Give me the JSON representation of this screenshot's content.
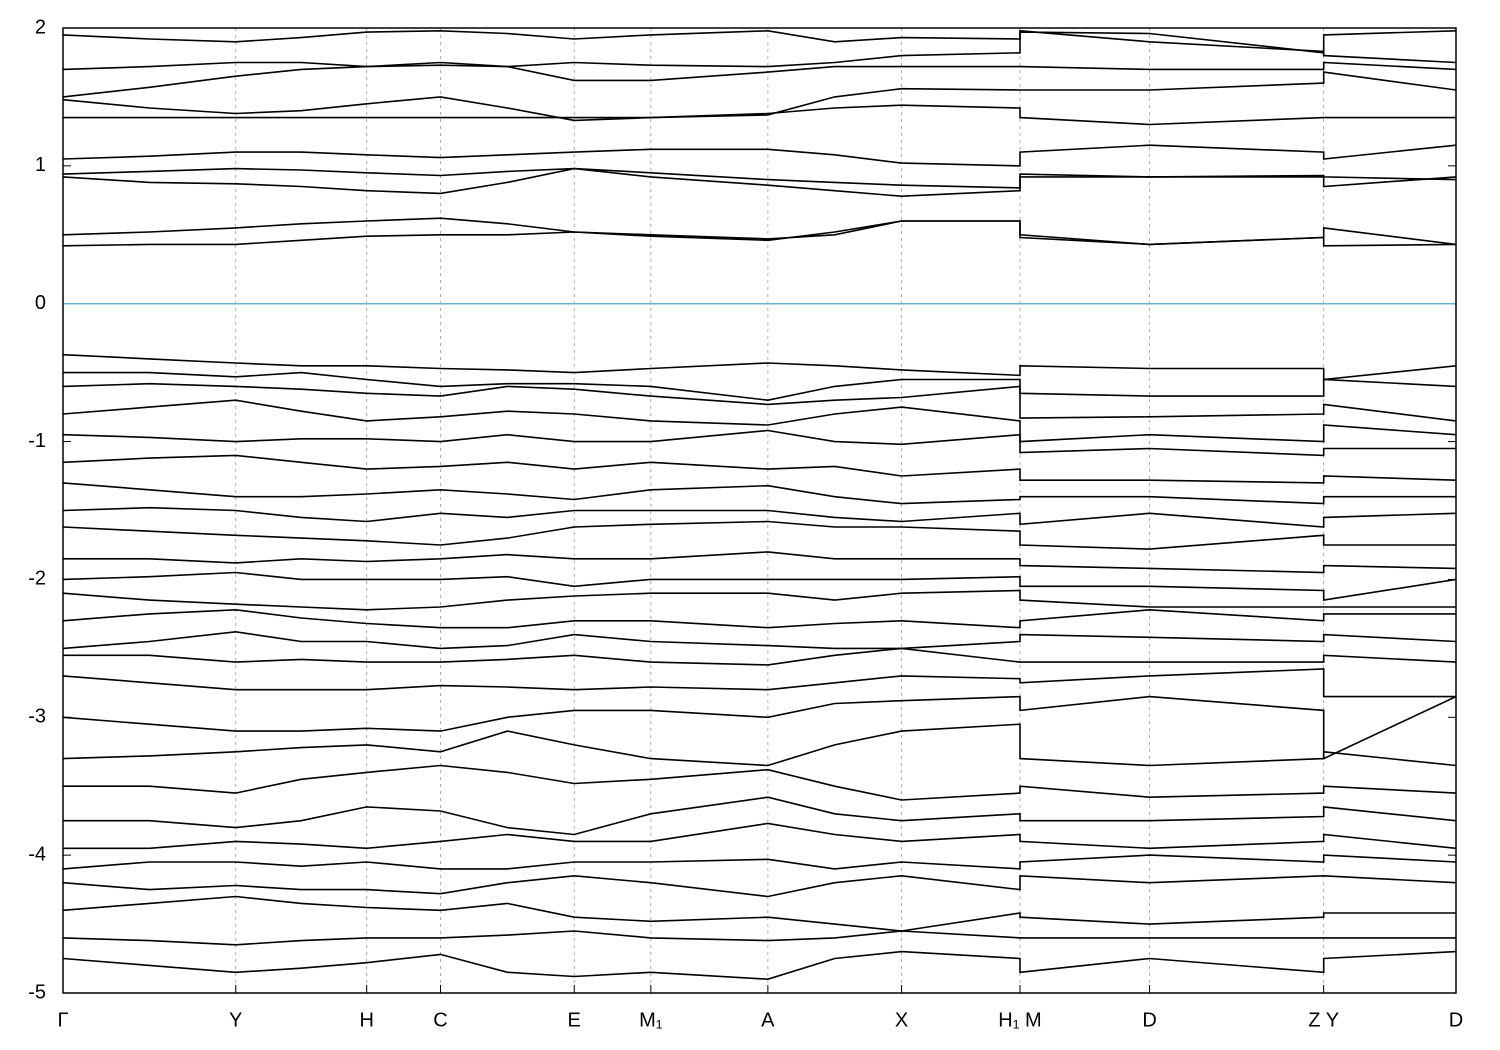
{
  "chart_data": {
    "type": "band",
    "xlim": [
      0,
      1
    ],
    "ylim": [
      -5,
      2
    ],
    "yticks": [
      -5,
      -4,
      -3,
      -2,
      -1,
      0,
      1,
      2
    ],
    "xticks": [
      {
        "value": 0,
        "label": "Γ"
      },
      {
        "value": 0.124,
        "label": "Y"
      },
      {
        "value": 0.218,
        "label": "H"
      },
      {
        "value": 0.271,
        "label": "C"
      },
      {
        "value": 0.367,
        "label": "E"
      },
      {
        "value": 0.422,
        "label": "M₁"
      },
      {
        "value": 0.506,
        "label": "A"
      },
      {
        "value": 0.602,
        "label": "X"
      },
      {
        "value": 0.687,
        "label": "H₁ M"
      },
      {
        "value": 0.78,
        "label": "D"
      },
      {
        "value": 0.905,
        "label": "Z Y"
      },
      {
        "value": 1,
        "label": "D"
      }
    ],
    "grid": true,
    "fermi_level": 0,
    "fermi_color": "#5fb4c8",
    "x": [
      0,
      0.062,
      0.124,
      0.171,
      0.218,
      0.271,
      0.319,
      0.367,
      0.422,
      0.506,
      0.554,
      0.602,
      0.687,
      0.687,
      0.78,
      0.905,
      0.905,
      1
    ],
    "series": [
      {
        "color": "#000000",
        "values": [
          0.42,
          0.43,
          0.43,
          0.46,
          0.49,
          0.5,
          0.5,
          0.52,
          0.49,
          0.46,
          0.52,
          0.6,
          0.6,
          0.5,
          0.43,
          0.48,
          0.55,
          0.43
        ]
      },
      {
        "color": "#000000",
        "values": [
          0.5,
          0.52,
          0.55,
          0.58,
          0.6,
          0.62,
          0.58,
          0.52,
          0.5,
          0.47,
          0.5,
          0.6,
          0.6,
          0.48,
          0.43,
          0.48,
          0.42,
          0.43
        ]
      },
      {
        "color": "#000000",
        "values": [
          0.92,
          0.88,
          0.87,
          0.85,
          0.82,
          0.8,
          0.88,
          0.98,
          0.92,
          0.86,
          0.82,
          0.78,
          0.82,
          0.92,
          0.92,
          0.92,
          0.85,
          0.92
        ]
      },
      {
        "color": "#000000",
        "values": [
          0.94,
          0.96,
          0.98,
          0.97,
          0.95,
          0.93,
          0.96,
          0.98,
          0.95,
          0.9,
          0.88,
          0.86,
          0.84,
          0.94,
          0.92,
          0.93,
          0.92,
          0.9
        ]
      },
      {
        "color": "#000000",
        "values": [
          1.05,
          1.07,
          1.1,
          1.1,
          1.08,
          1.06,
          1.08,
          1.1,
          1.12,
          1.12,
          1.08,
          1.02,
          1.0,
          1.1,
          1.15,
          1.1,
          1.05,
          1.15
        ]
      },
      {
        "color": "#000000",
        "values": [
          1.35,
          1.35,
          1.35,
          1.35,
          1.35,
          1.35,
          1.35,
          1.35,
          1.35,
          1.38,
          1.42,
          1.44,
          1.42,
          1.35,
          1.3,
          1.35,
          1.35,
          1.35
        ]
      },
      {
        "color": "#000000",
        "values": [
          1.48,
          1.42,
          1.38,
          1.4,
          1.45,
          1.5,
          1.42,
          1.33,
          1.35,
          1.37,
          1.5,
          1.56,
          1.55,
          1.55,
          1.55,
          1.6,
          1.68,
          1.55
        ]
      },
      {
        "color": "#000000",
        "values": [
          1.5,
          1.57,
          1.65,
          1.7,
          1.72,
          1.73,
          1.72,
          1.62,
          1.62,
          1.68,
          1.72,
          1.72,
          1.72,
          1.72,
          1.7,
          1.7,
          1.75,
          1.7
        ]
      },
      {
        "color": "#000000",
        "values": [
          1.7,
          1.72,
          1.75,
          1.75,
          1.72,
          1.75,
          1.72,
          1.75,
          1.73,
          1.72,
          1.75,
          1.8,
          1.82,
          1.97,
          1.96,
          1.82,
          1.8,
          1.75
        ]
      },
      {
        "color": "#000000",
        "values": [
          1.95,
          1.92,
          1.9,
          1.93,
          1.97,
          1.98,
          1.96,
          1.92,
          1.95,
          1.98,
          1.9,
          1.93,
          1.92,
          1.98,
          1.9,
          1.83,
          1.95,
          1.98
        ]
      },
      {
        "color": "#000000",
        "values": [
          -0.37,
          -0.4,
          -0.43,
          -0.45,
          -0.45,
          -0.47,
          -0.48,
          -0.5,
          -0.47,
          -0.43,
          -0.45,
          -0.48,
          -0.52,
          -0.45,
          -0.47,
          -0.47,
          -0.55,
          -0.45
        ]
      },
      {
        "color": "#000000",
        "values": [
          -0.5,
          -0.5,
          -0.53,
          -0.5,
          -0.55,
          -0.6,
          -0.58,
          -0.58,
          -0.6,
          -0.7,
          -0.6,
          -0.55,
          -0.55,
          -0.65,
          -0.67,
          -0.67,
          -0.55,
          -0.6
        ]
      },
      {
        "color": "#000000",
        "values": [
          -0.6,
          -0.58,
          -0.6,
          -0.62,
          -0.65,
          -0.67,
          -0.6,
          -0.62,
          -0.67,
          -0.73,
          -0.7,
          -0.68,
          -0.6,
          -0.83,
          -0.82,
          -0.8,
          -0.73,
          -0.85
        ]
      },
      {
        "color": "#000000",
        "values": [
          -0.8,
          -0.75,
          -0.7,
          -0.78,
          -0.85,
          -0.82,
          -0.78,
          -0.8,
          -0.85,
          -0.88,
          -0.8,
          -0.75,
          -0.85,
          -1.0,
          -0.95,
          -1.0,
          -0.88,
          -0.95
        ]
      },
      {
        "color": "#000000",
        "values": [
          -0.95,
          -0.97,
          -1.0,
          -0.98,
          -0.98,
          -1.0,
          -0.95,
          -1.0,
          -1.0,
          -0.92,
          -1.0,
          -1.02,
          -0.95,
          -1.08,
          -1.05,
          -1.1,
          -1.05,
          -1.05
        ]
      },
      {
        "color": "#000000",
        "values": [
          -1.15,
          -1.12,
          -1.1,
          -1.15,
          -1.2,
          -1.18,
          -1.15,
          -1.2,
          -1.15,
          -1.2,
          -1.18,
          -1.25,
          -1.2,
          -1.28,
          -1.28,
          -1.3,
          -1.25,
          -1.28
        ]
      },
      {
        "color": "#000000",
        "values": [
          -1.3,
          -1.35,
          -1.4,
          -1.4,
          -1.38,
          -1.35,
          -1.38,
          -1.42,
          -1.35,
          -1.32,
          -1.4,
          -1.45,
          -1.42,
          -1.4,
          -1.4,
          -1.45,
          -1.4,
          -1.4
        ]
      },
      {
        "color": "#000000",
        "values": [
          -1.5,
          -1.48,
          -1.5,
          -1.55,
          -1.58,
          -1.52,
          -1.55,
          -1.5,
          -1.5,
          -1.5,
          -1.55,
          -1.58,
          -1.52,
          -1.6,
          -1.52,
          -1.62,
          -1.55,
          -1.52
        ]
      },
      {
        "color": "#000000",
        "values": [
          -1.62,
          -1.65,
          -1.68,
          -1.7,
          -1.72,
          -1.75,
          -1.7,
          -1.62,
          -1.6,
          -1.58,
          -1.62,
          -1.62,
          -1.65,
          -1.75,
          -1.78,
          -1.68,
          -1.75,
          -1.75
        ]
      },
      {
        "color": "#000000",
        "values": [
          -1.85,
          -1.85,
          -1.88,
          -1.85,
          -1.87,
          -1.85,
          -1.82,
          -1.85,
          -1.85,
          -1.8,
          -1.85,
          -1.85,
          -1.85,
          -1.9,
          -1.92,
          -1.95,
          -1.9,
          -1.92
        ]
      },
      {
        "color": "#000000",
        "values": [
          -2.0,
          -1.98,
          -1.95,
          -2.0,
          -2.0,
          -2.0,
          -1.98,
          -2.05,
          -2.0,
          -2.0,
          -2.0,
          -2.0,
          -1.98,
          -2.05,
          -2.05,
          -2.08,
          -2.15,
          -2.0
        ]
      },
      {
        "color": "#000000",
        "values": [
          -2.1,
          -2.15,
          -2.18,
          -2.2,
          -2.22,
          -2.2,
          -2.15,
          -2.12,
          -2.1,
          -2.1,
          -2.15,
          -2.1,
          -2.08,
          -2.15,
          -2.2,
          -2.2,
          -2.2,
          -2.2
        ]
      },
      {
        "color": "#000000",
        "values": [
          -2.3,
          -2.25,
          -2.22,
          -2.28,
          -2.32,
          -2.35,
          -2.35,
          -2.3,
          -2.3,
          -2.35,
          -2.32,
          -2.3,
          -2.35,
          -2.3,
          -2.22,
          -2.3,
          -2.25,
          -2.25
        ]
      },
      {
        "color": "#000000",
        "values": [
          -2.5,
          -2.45,
          -2.38,
          -2.45,
          -2.45,
          -2.5,
          -2.48,
          -2.4,
          -2.45,
          -2.48,
          -2.5,
          -2.5,
          -2.45,
          -2.4,
          -2.42,
          -2.45,
          -2.4,
          -2.45
        ]
      },
      {
        "color": "#000000",
        "values": [
          -2.55,
          -2.55,
          -2.6,
          -2.58,
          -2.6,
          -2.6,
          -2.58,
          -2.55,
          -2.6,
          -2.62,
          -2.55,
          -2.5,
          -2.6,
          -2.6,
          -2.6,
          -2.6,
          -2.55,
          -2.6
        ]
      },
      {
        "color": "#000000",
        "values": [
          -2.7,
          -2.75,
          -2.8,
          -2.8,
          -2.8,
          -2.77,
          -2.78,
          -2.8,
          -2.78,
          -2.8,
          -2.75,
          -2.7,
          -2.72,
          -2.75,
          -2.7,
          -2.65,
          -2.85,
          -2.85
        ]
      },
      {
        "color": "#000000",
        "values": [
          -3.0,
          -3.05,
          -3.1,
          -3.1,
          -3.08,
          -3.1,
          -3.0,
          -2.95,
          -2.95,
          -3.0,
          -2.9,
          -2.88,
          -2.85,
          -2.95,
          -2.85,
          -2.95,
          -3.3,
          -2.85
        ]
      },
      {
        "color": "#000000",
        "values": [
          -3.3,
          -3.28,
          -3.25,
          -3.22,
          -3.2,
          -3.25,
          -3.1,
          -3.2,
          -3.3,
          -3.35,
          -3.2,
          -3.1,
          -3.05,
          -3.3,
          -3.35,
          -3.3,
          -3.25,
          -3.35
        ]
      },
      {
        "color": "#000000",
        "values": [
          -3.5,
          -3.5,
          -3.55,
          -3.45,
          -3.4,
          -3.35,
          -3.4,
          -3.48,
          -3.45,
          -3.38,
          -3.5,
          -3.6,
          -3.55,
          -3.5,
          -3.58,
          -3.55,
          -3.5,
          -3.55
        ]
      },
      {
        "color": "#000000",
        "values": [
          -3.75,
          -3.75,
          -3.8,
          -3.75,
          -3.65,
          -3.68,
          -3.8,
          -3.85,
          -3.7,
          -3.58,
          -3.7,
          -3.75,
          -3.7,
          -3.75,
          -3.75,
          -3.72,
          -3.65,
          -3.75
        ]
      },
      {
        "color": "#000000",
        "values": [
          -3.95,
          -3.95,
          -3.9,
          -3.92,
          -3.95,
          -3.9,
          -3.85,
          -3.9,
          -3.9,
          -3.77,
          -3.85,
          -3.9,
          -3.85,
          -3.9,
          -3.95,
          -3.9,
          -3.85,
          -3.95
        ]
      },
      {
        "color": "#000000",
        "values": [
          -4.1,
          -4.05,
          -4.05,
          -4.08,
          -4.05,
          -4.1,
          -4.1,
          -4.05,
          -4.05,
          -4.03,
          -4.1,
          -4.05,
          -4.1,
          -4.05,
          -4.0,
          -4.05,
          -4.0,
          -4.05
        ]
      },
      {
        "color": "#000000",
        "values": [
          -4.2,
          -4.25,
          -4.22,
          -4.25,
          -4.25,
          -4.28,
          -4.2,
          -4.15,
          -4.2,
          -4.3,
          -4.2,
          -4.15,
          -4.25,
          -4.15,
          -4.2,
          -4.15,
          -4.15,
          -4.2
        ]
      },
      {
        "color": "#000000",
        "values": [
          -4.4,
          -4.35,
          -4.3,
          -4.35,
          -4.38,
          -4.4,
          -4.35,
          -4.45,
          -4.48,
          -4.45,
          -4.5,
          -4.55,
          -4.42,
          -4.45,
          -4.5,
          -4.45,
          -4.42,
          -4.42
        ]
      },
      {
        "color": "#000000",
        "values": [
          -4.6,
          -4.62,
          -4.65,
          -4.62,
          -4.6,
          -4.6,
          -4.58,
          -4.55,
          -4.6,
          -4.62,
          -4.6,
          -4.55,
          -4.6,
          -4.6,
          -4.6,
          -4.6,
          -4.6,
          -4.6
        ]
      },
      {
        "color": "#000000",
        "values": [
          -4.75,
          -4.8,
          -4.85,
          -4.82,
          -4.78,
          -4.72,
          -4.85,
          -4.88,
          -4.85,
          -4.9,
          -4.75,
          -4.7,
          -4.75,
          -4.85,
          -4.75,
          -4.85,
          -4.75,
          -4.7
        ]
      }
    ]
  }
}
